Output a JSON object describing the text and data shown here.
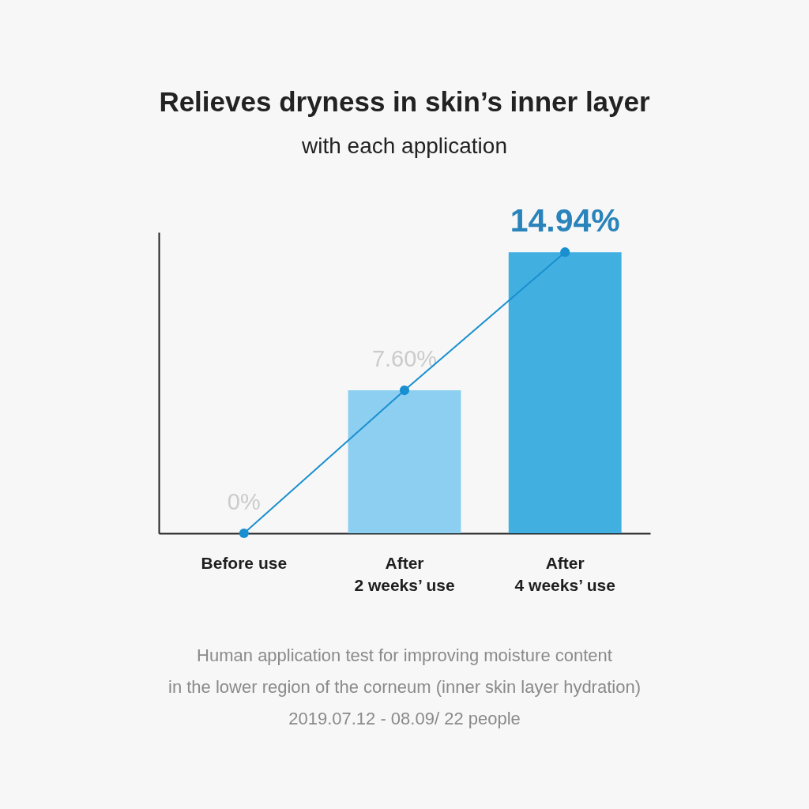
{
  "chart_data": {
    "type": "bar",
    "title": "Relieves dryness in skin’s inner layer",
    "subtitle": "with each application",
    "categories": [
      "Before use",
      "After\n2 weeks’ use",
      "After\n4 weeks’ use"
    ],
    "series": [
      {
        "values": [
          0,
          7.6,
          14.94
        ],
        "colors": [
          "#c2e6f9",
          "#8ccff0",
          "#41afe0"
        ],
        "value_labels": [
          "0%",
          "7.60%",
          "14.94%"
        ]
      },
      {
        "type": "line",
        "values": [
          0,
          7.6,
          14.94
        ],
        "color": "#1a8fd0",
        "marker": "circle"
      }
    ],
    "tick_labels": "x",
    "annotations": [
      "Human application test for improving moisture content",
      "in the lower region of the corneum (inner skin layer hydration)",
      "2019.07.12 - 08.09/ 22 people"
    ]
  }
}
